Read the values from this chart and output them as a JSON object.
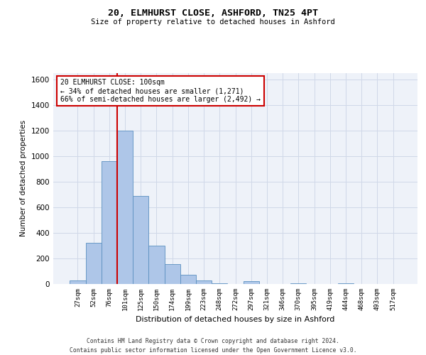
{
  "title_line1": "20, ELMHURST CLOSE, ASHFORD, TN25 4PT",
  "title_line2": "Size of property relative to detached houses in Ashford",
  "xlabel": "Distribution of detached houses by size in Ashford",
  "ylabel": "Number of detached properties",
  "bar_categories": [
    "27sqm",
    "52sqm",
    "76sqm",
    "101sqm",
    "125sqm",
    "150sqm",
    "174sqm",
    "199sqm",
    "223sqm",
    "248sqm",
    "272sqm",
    "297sqm",
    "321sqm",
    "346sqm",
    "370sqm",
    "395sqm",
    "419sqm",
    "444sqm",
    "468sqm",
    "493sqm",
    "517sqm"
  ],
  "bar_values": [
    30,
    320,
    960,
    1200,
    690,
    300,
    155,
    70,
    25,
    5,
    0,
    20,
    0,
    0,
    5,
    0,
    0,
    5,
    0,
    0,
    0
  ],
  "bar_color": "#aec6e8",
  "bar_edge_color": "#5a8fc0",
  "ylim": [
    0,
    1650
  ],
  "yticks": [
    0,
    200,
    400,
    600,
    800,
    1000,
    1200,
    1400,
    1600
  ],
  "vline_index": 3,
  "property_line_label1": "20 ELMHURST CLOSE: 100sqm",
  "property_line_label2": "← 34% of detached houses are smaller (1,271)",
  "property_line_label3": "66% of semi-detached houses are larger (2,492) →",
  "annotation_box_color": "#cc0000",
  "vline_color": "#cc0000",
  "grid_color": "#d0d8e8",
  "background_color": "#eef2f9",
  "footer1": "Contains HM Land Registry data © Crown copyright and database right 2024.",
  "footer2": "Contains public sector information licensed under the Open Government Licence v3.0."
}
